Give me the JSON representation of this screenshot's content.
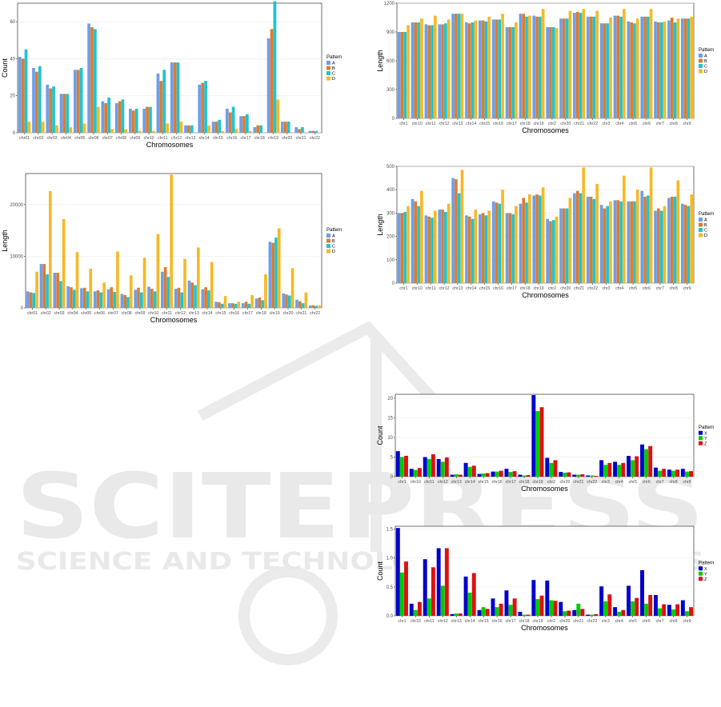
{
  "palettes": {
    "abcd": [
      "#6d9eeb",
      "#e07b2a",
      "#1cc4d4",
      "#f7b824"
    ],
    "xyz": [
      "#0000cc",
      "#00cc00",
      "#dd1111"
    ]
  },
  "watermark": {
    "line1": "SCITEPRESS",
    "line2": "SCIENCE AND TECHNOLOGY PUBLICATIONS"
  },
  "chart_data": [
    {
      "id": "p1",
      "type": "bar",
      "xlabel": "Chromosomes",
      "ylabel": "Count",
      "legend_title": "Pattern",
      "legend_position": "right",
      "grid": true,
      "ylim": [
        0,
        70
      ],
      "yticks": [
        0,
        20,
        40,
        60
      ],
      "categories": [
        "chr01",
        "chr02",
        "chr03",
        "chr04",
        "chr05",
        "chr06",
        "chr07",
        "chr08",
        "chr09",
        "chr10",
        "chr11",
        "chr12",
        "chr13",
        "chr14",
        "chr15",
        "chr16",
        "chr17",
        "chr18",
        "chr19",
        "chr20",
        "chr21",
        "chr22"
      ],
      "series": [
        {
          "name": "A",
          "values": [
            41,
            35,
            26,
            21,
            34,
            59,
            17,
            16,
            13,
            13,
            32,
            38,
            4,
            26,
            6,
            13,
            9,
            3,
            51,
            6,
            3,
            1
          ]
        },
        {
          "name": "B",
          "values": [
            40,
            33,
            24,
            21,
            34,
            57,
            16,
            17,
            12,
            14,
            28,
            38,
            4,
            27,
            6,
            11,
            9,
            4,
            56,
            6,
            2,
            1
          ]
        },
        {
          "name": "C",
          "values": [
            45,
            36,
            25,
            21,
            35,
            56,
            19,
            18,
            13,
            14,
            34,
            38,
            4,
            28,
            7,
            14,
            10,
            4,
            71,
            6,
            3,
            1
          ]
        },
        {
          "name": "D",
          "values": [
            6,
            6,
            4,
            3,
            5,
            14,
            2,
            2,
            1,
            1,
            5,
            6,
            0,
            4,
            1,
            2,
            1,
            0,
            18,
            0,
            0,
            0
          ]
        }
      ]
    },
    {
      "id": "p2",
      "type": "bar",
      "xlabel": "Chromosomes",
      "ylabel": "Length",
      "legend_title": "Pattern",
      "legend_position": "right",
      "grid": true,
      "ylim": [
        0,
        1200
      ],
      "yticks": [
        0,
        300,
        600,
        900,
        1200
      ],
      "categories": [
        "chr1",
        "chr10",
        "chr11",
        "chr12",
        "chr13",
        "chr14",
        "chr15",
        "chr16",
        "chr17",
        "chr18",
        "chr19",
        "chr2",
        "chr20",
        "chr21",
        "chr22",
        "chr3",
        "chr4",
        "chr5",
        "chr6",
        "chr7",
        "chr8",
        "chr9"
      ],
      "series": [
        {
          "name": "A",
          "values": [
            900,
            1000,
            980,
            980,
            1090,
            1000,
            1020,
            1030,
            950,
            1090,
            1070,
            950,
            1040,
            1100,
            1060,
            990,
            1070,
            1010,
            1060,
            1010,
            1020,
            1040
          ]
        },
        {
          "name": "B",
          "values": [
            900,
            1000,
            970,
            980,
            1090,
            990,
            1020,
            1030,
            950,
            1090,
            1060,
            950,
            1040,
            1110,
            1060,
            990,
            1070,
            1000,
            1060,
            1000,
            1050,
            1040
          ]
        },
        {
          "name": "C",
          "values": [
            900,
            1000,
            970,
            990,
            1090,
            1000,
            1010,
            1030,
            950,
            1060,
            1060,
            950,
            1040,
            1100,
            1060,
            990,
            1060,
            990,
            1060,
            1000,
            1000,
            1040
          ]
        },
        {
          "name": "D",
          "values": [
            970,
            1040,
            1070,
            1030,
            1090,
            1020,
            1060,
            1090,
            1000,
            1070,
            1140,
            940,
            1120,
            1140,
            1120,
            1050,
            1140,
            1040,
            1140,
            1010,
            1040,
            1060
          ]
        }
      ]
    },
    {
      "id": "p3",
      "type": "bar",
      "xlabel": "Chromosomes",
      "ylabel": "Length",
      "legend_title": "Pattern",
      "legend_position": "right",
      "grid": true,
      "ylim": [
        0,
        26000
      ],
      "yticks": [
        0,
        10000,
        20000
      ],
      "categories": [
        "chr01",
        "chr02",
        "chr03",
        "chr04",
        "chr05",
        "chr06",
        "chr07",
        "chr08",
        "chr09",
        "chr10",
        "chr11",
        "chr12",
        "chr13",
        "chr14",
        "chr15",
        "chr16",
        "chr17",
        "chr18",
        "chr19",
        "chr20",
        "chr21",
        "chr22"
      ],
      "series": [
        {
          "name": "A",
          "values": [
            3200,
            8500,
            6800,
            4200,
            3800,
            3200,
            3600,
            2700,
            3500,
            4100,
            7000,
            3700,
            5300,
            3600,
            1200,
            900,
            900,
            1800,
            12800,
            2800,
            1600,
            500
          ]
        },
        {
          "name": "B",
          "values": [
            3000,
            8500,
            6800,
            4000,
            3900,
            3400,
            4000,
            2500,
            3900,
            3700,
            7900,
            3900,
            4900,
            4000,
            1100,
            900,
            1200,
            2000,
            12600,
            2600,
            1300,
            500
          ]
        },
        {
          "name": "C",
          "values": [
            2900,
            6500,
            5200,
            3500,
            3200,
            3000,
            3100,
            2100,
            3000,
            3200,
            6000,
            3000,
            4400,
            3400,
            800,
            800,
            800,
            1500,
            13600,
            2400,
            900,
            400
          ]
        },
        {
          "name": "D",
          "values": [
            7000,
            22600,
            17200,
            10800,
            7600,
            4900,
            10900,
            6300,
            9700,
            14300,
            25800,
            9500,
            11700,
            8900,
            2300,
            1200,
            2500,
            6500,
            15400,
            7700,
            3000,
            500
          ]
        }
      ]
    },
    {
      "id": "p4",
      "type": "bar",
      "xlabel": "Chromosomes",
      "ylabel": "Length",
      "legend_title": "Pattern",
      "legend_position": "right",
      "grid": true,
      "ylim": [
        0,
        500
      ],
      "yticks": [
        0,
        100,
        200,
        300,
        400,
        500
      ],
      "categories": [
        "chr1",
        "chr10",
        "chr11",
        "chr12",
        "chr13",
        "chr14",
        "chr15",
        "chr16",
        "chr17",
        "chr18",
        "chr19",
        "chr2",
        "chr20",
        "chr21",
        "chr22",
        "chr3",
        "chr4",
        "chr5",
        "chr6",
        "chr7",
        "chr8",
        "chr9"
      ],
      "series": [
        {
          "name": "A",
          "values": [
            300,
            360,
            290,
            315,
            450,
            290,
            295,
            350,
            300,
            340,
            375,
            275,
            320,
            385,
            370,
            335,
            355,
            350,
            395,
            310,
            365,
            340
          ]
        },
        {
          "name": "B",
          "values": [
            300,
            350,
            285,
            315,
            445,
            285,
            300,
            345,
            300,
            365,
            380,
            265,
            320,
            395,
            370,
            320,
            355,
            350,
            370,
            320,
            370,
            335
          ]
        },
        {
          "name": "C",
          "values": [
            305,
            330,
            280,
            305,
            385,
            275,
            290,
            340,
            295,
            345,
            375,
            270,
            320,
            385,
            360,
            330,
            350,
            350,
            375,
            310,
            370,
            330
          ]
        },
        {
          "name": "D",
          "values": [
            330,
            395,
            310,
            340,
            485,
            315,
            310,
            400,
            330,
            380,
            410,
            285,
            365,
            495,
            425,
            350,
            460,
            400,
            495,
            330,
            440,
            380
          ]
        }
      ]
    },
    {
      "id": "p5",
      "type": "bar",
      "xlabel": "Chromosomes",
      "ylabel": "Count",
      "legend_title": "Pattern",
      "legend_position": "right",
      "grid": true,
      "ylim": [
        0,
        21
      ],
      "yticks": [
        0,
        5,
        10,
        15,
        20
      ],
      "categories": [
        "chr1",
        "chr10",
        "chr11",
        "chr12",
        "chr13",
        "chr14",
        "chr15",
        "chr16",
        "chr17",
        "chr18",
        "chr19",
        "chr2",
        "chr20",
        "chr21",
        "chr22",
        "chr3",
        "chr4",
        "chr5",
        "chr6",
        "chr7",
        "chr8",
        "chr9"
      ],
      "series": [
        {
          "name": "X",
          "values": [
            6.5,
            2.0,
            5.0,
            4.5,
            0.5,
            3.5,
            0.7,
            1.3,
            2.0,
            0.5,
            20.8,
            4.8,
            1.2,
            0.5,
            0.3,
            4.2,
            3.8,
            5.3,
            8.2,
            2.3,
            1.8,
            2.0
          ]
        },
        {
          "name": "Y",
          "values": [
            5.0,
            1.7,
            4.5,
            3.8,
            0.6,
            2.5,
            0.8,
            1.3,
            1.2,
            0.3,
            16.7,
            3.5,
            1.0,
            0.5,
            0.3,
            3.0,
            3.0,
            4.2,
            7.0,
            1.5,
            1.5,
            1.3
          ]
        },
        {
          "name": "Z",
          "values": [
            5.3,
            2.2,
            5.7,
            4.9,
            0.5,
            2.8,
            0.9,
            1.5,
            1.4,
            0.4,
            17.7,
            4.2,
            1.1,
            0.6,
            0.2,
            3.5,
            3.5,
            5.2,
            7.8,
            2.0,
            1.8,
            1.4
          ]
        }
      ]
    },
    {
      "id": "p6",
      "type": "bar",
      "xlabel": "Chromosomes",
      "ylabel": "Count",
      "legend_title": "Pattern",
      "legend_position": "right",
      "grid": true,
      "ylim": [
        0,
        1.55
      ],
      "yticks": [
        0.0,
        0.5,
        1.0,
        1.5
      ],
      "ytick_labels": [
        "0.0",
        "0.5",
        "1.0",
        "1.5"
      ],
      "categories": [
        "chr1",
        "chr10",
        "chr11",
        "chr12",
        "chr13",
        "chr14",
        "chr15",
        "chr16",
        "chr17",
        "chr18",
        "chr19",
        "chr2",
        "chr20",
        "chr21",
        "chr22",
        "chr3",
        "chr4",
        "chr5",
        "chr6",
        "chr7",
        "chr8",
        "chr9"
      ],
      "series": [
        {
          "name": "X",
          "values": [
            1.52,
            0.21,
            0.98,
            1.17,
            0.03,
            0.68,
            0.1,
            0.3,
            0.44,
            0.07,
            0.62,
            0.61,
            0.24,
            0.1,
            0.02,
            0.51,
            0.15,
            0.52,
            0.79,
            0.36,
            0.19,
            0.27
          ]
        },
        {
          "name": "Y",
          "values": [
            0.75,
            0.1,
            0.3,
            0.52,
            0.04,
            0.4,
            0.15,
            0.15,
            0.19,
            0.02,
            0.29,
            0.27,
            0.08,
            0.21,
            0.02,
            0.25,
            0.07,
            0.25,
            0.21,
            0.13,
            0.11,
            0.08
          ]
        },
        {
          "name": "Z",
          "values": [
            0.94,
            0.24,
            0.84,
            1.17,
            0.04,
            0.74,
            0.12,
            0.21,
            0.3,
            0.02,
            0.35,
            0.26,
            0.09,
            0.12,
            0.03,
            0.37,
            0.1,
            0.31,
            0.36,
            0.2,
            0.2,
            0.15
          ]
        }
      ]
    }
  ]
}
